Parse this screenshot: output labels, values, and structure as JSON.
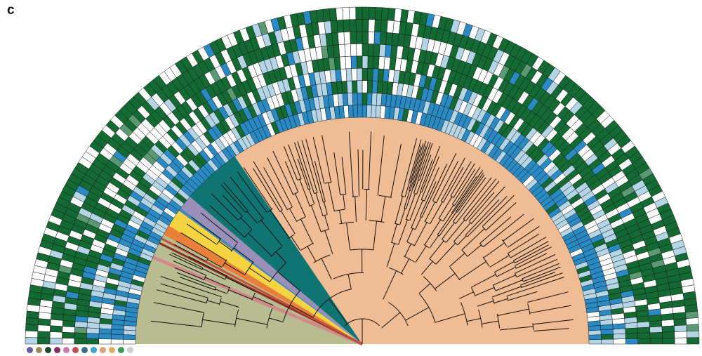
{
  "panel": {
    "label": "c"
  },
  "legend": {
    "swatches": [
      {
        "name": "swatch-1",
        "color": "#6a5aa3"
      },
      {
        "name": "swatch-2",
        "color": "#a08a5a"
      },
      {
        "name": "swatch-3",
        "color": "#1d4a2a"
      },
      {
        "name": "swatch-4",
        "color": "#8a2a6a"
      },
      {
        "name": "swatch-5",
        "color": "#c97bb0"
      },
      {
        "name": "swatch-6",
        "color": "#c0504d"
      },
      {
        "name": "swatch-7",
        "color": "#3a6a8a"
      },
      {
        "name": "swatch-8",
        "color": "#3ba6d6"
      },
      {
        "name": "swatch-9",
        "color": "#e0a080"
      },
      {
        "name": "swatch-10",
        "color": "#d9b060"
      },
      {
        "name": "swatch-11",
        "color": "#3a9a5a"
      },
      {
        "name": "swatch-12",
        "color": "#d0d0d0"
      }
    ]
  },
  "clades": [
    {
      "name": "clade-large",
      "color": "#f0bc94",
      "from": 0,
      "to": 0.69
    },
    {
      "name": "clade-teal",
      "color": "#0f7472",
      "from": 0.69,
      "to": 0.775
    },
    {
      "name": "clade-lavender",
      "color": "#9a8fb8",
      "from": 0.775,
      "to": 0.795
    },
    {
      "name": "clade-blue",
      "color": "#4a86b8",
      "from": 0.795,
      "to": 0.8
    },
    {
      "name": "clade-yellow",
      "color": "#f4d440",
      "from": 0.8,
      "to": 0.825
    },
    {
      "name": "clade-orange",
      "color": "#e8803a",
      "from": 0.825,
      "to": 0.84
    },
    {
      "name": "clade-olive",
      "color": "#b8bc90",
      "from": 0.84,
      "to": 1.0
    }
  ],
  "heatmap": {
    "rings": 9,
    "columns": 160,
    "palette": [
      "#ffffff",
      "#b3d5e6",
      "#2a8ac4",
      "#136b33",
      "#5a9a72"
    ]
  }
}
